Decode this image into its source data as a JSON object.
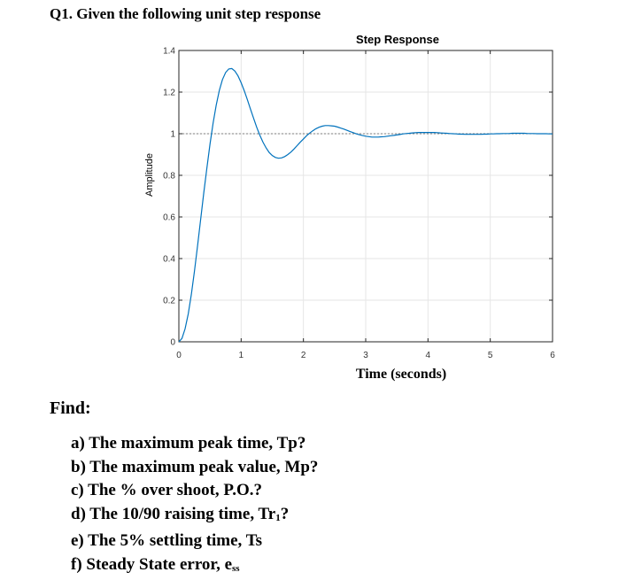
{
  "question": {
    "title": "Q1. Given the following unit step response"
  },
  "find": {
    "label": "Find:"
  },
  "parts": [
    {
      "text": "a) The maximum peak time, Tp?"
    },
    {
      "text": "b) The maximum peak value, Mp?"
    },
    {
      "text": "c) The % over shoot, P.O.?"
    },
    {
      "text": "d) The 10/90 raising time, Tr",
      "sub": "1"
    },
    {
      "text": "e) The 5% settling time, Ts"
    },
    {
      "text": "f) Steady State error, e",
      "sub": "ss"
    }
  ],
  "chart_data": {
    "type": "line",
    "title": "Step Response",
    "xlabel": "Time (seconds)",
    "ylabel": "Amplitude",
    "xlim": [
      0,
      6
    ],
    "ylim": [
      0,
      1.4
    ],
    "xticks": [
      "0",
      "1",
      "2",
      "3",
      "4",
      "5",
      "6"
    ],
    "yticks": [
      "0",
      "0.2",
      "0.4",
      "0.6",
      "0.8",
      "1",
      "1.2",
      "1.4"
    ],
    "grid": true,
    "reference_line": 1,
    "series": [
      {
        "x": [
          0,
          0.05,
          0.1,
          0.15,
          0.2,
          0.25,
          0.3,
          0.35,
          0.4,
          0.45,
          0.5,
          0.55,
          0.6,
          0.65,
          0.7,
          0.75,
          0.8,
          0.85,
          0.9,
          0.95,
          1.0,
          1.05,
          1.1,
          1.15,
          1.2,
          1.25,
          1.3,
          1.35,
          1.4,
          1.45,
          1.5,
          1.55,
          1.6,
          1.65,
          1.7,
          1.75,
          1.8,
          1.85,
          1.9,
          1.95,
          2.0,
          2.05,
          2.1,
          2.15,
          2.2,
          2.25,
          2.3,
          2.35,
          2.4,
          2.45,
          2.5,
          2.55,
          2.6,
          2.65,
          2.7,
          2.75,
          2.8,
          2.85,
          2.9,
          2.95,
          3.0,
          3.05,
          3.1,
          3.15,
          3.2,
          3.25,
          3.3,
          3.35,
          3.4,
          3.45,
          3.5,
          3.55,
          3.6,
          3.65,
          3.7,
          3.75,
          3.8,
          3.85,
          3.9,
          3.95,
          4.0,
          4.05,
          4.1,
          4.15,
          4.2,
          4.25,
          4.3,
          4.35,
          4.4,
          4.45,
          4.5,
          4.55,
          4.6,
          4.65,
          4.7,
          4.75,
          4.8,
          4.85,
          4.9,
          4.95,
          5.0,
          5.05,
          5.1,
          5.15,
          5.2,
          5.25,
          5.3,
          5.35,
          5.4,
          5.45,
          5.5,
          5.55,
          5.6,
          5.65,
          5.7,
          5.75,
          5.8,
          5.85,
          5.9,
          5.95,
          6.0
        ],
        "y": [
          0,
          0.016,
          0.062,
          0.134,
          0.228,
          0.339,
          0.461,
          0.588,
          0.715,
          0.837,
          0.951,
          1.052,
          1.138,
          1.208,
          1.26,
          1.294,
          1.311,
          1.313,
          1.301,
          1.278,
          1.245,
          1.206,
          1.163,
          1.118,
          1.074,
          1.031,
          0.993,
          0.96,
          0.932,
          0.91,
          0.895,
          0.886,
          0.882,
          0.884,
          0.89,
          0.9,
          0.912,
          0.927,
          0.943,
          0.959,
          0.975,
          0.99,
          1.003,
          1.014,
          1.024,
          1.031,
          1.036,
          1.039,
          1.039,
          1.038,
          1.036,
          1.032,
          1.027,
          1.022,
          1.016,
          1.01,
          1.005,
          0.999,
          0.995,
          0.991,
          0.988,
          0.986,
          0.984,
          0.984,
          0.984,
          0.985,
          0.986,
          0.988,
          0.99,
          0.992,
          0.994,
          0.996,
          0.999,
          1.001,
          1.002,
          1.004,
          1.005,
          1.006,
          1.006,
          1.006,
          1.006,
          1.006,
          1.006,
          1.005,
          1.004,
          1.003,
          1.002,
          1.001,
          1.0,
          0.999,
          0.998,
          0.998,
          0.997,
          0.997,
          0.997,
          0.997,
          0.997,
          0.997,
          0.998,
          0.998,
          0.999,
          0.999,
          1.0,
          1.0,
          1.001,
          1.001,
          1.001,
          1.002,
          1.002,
          1.002,
          1.002,
          1.002,
          1.001,
          1.001,
          1.001,
          1.0,
          1.0,
          1.0,
          1.0,
          0.999,
          0.999
        ]
      }
    ]
  },
  "colors": {
    "line": "#0072bd",
    "grid": "#e6e6e6",
    "axis": "#262626",
    "reference": "#7f7f7f"
  }
}
